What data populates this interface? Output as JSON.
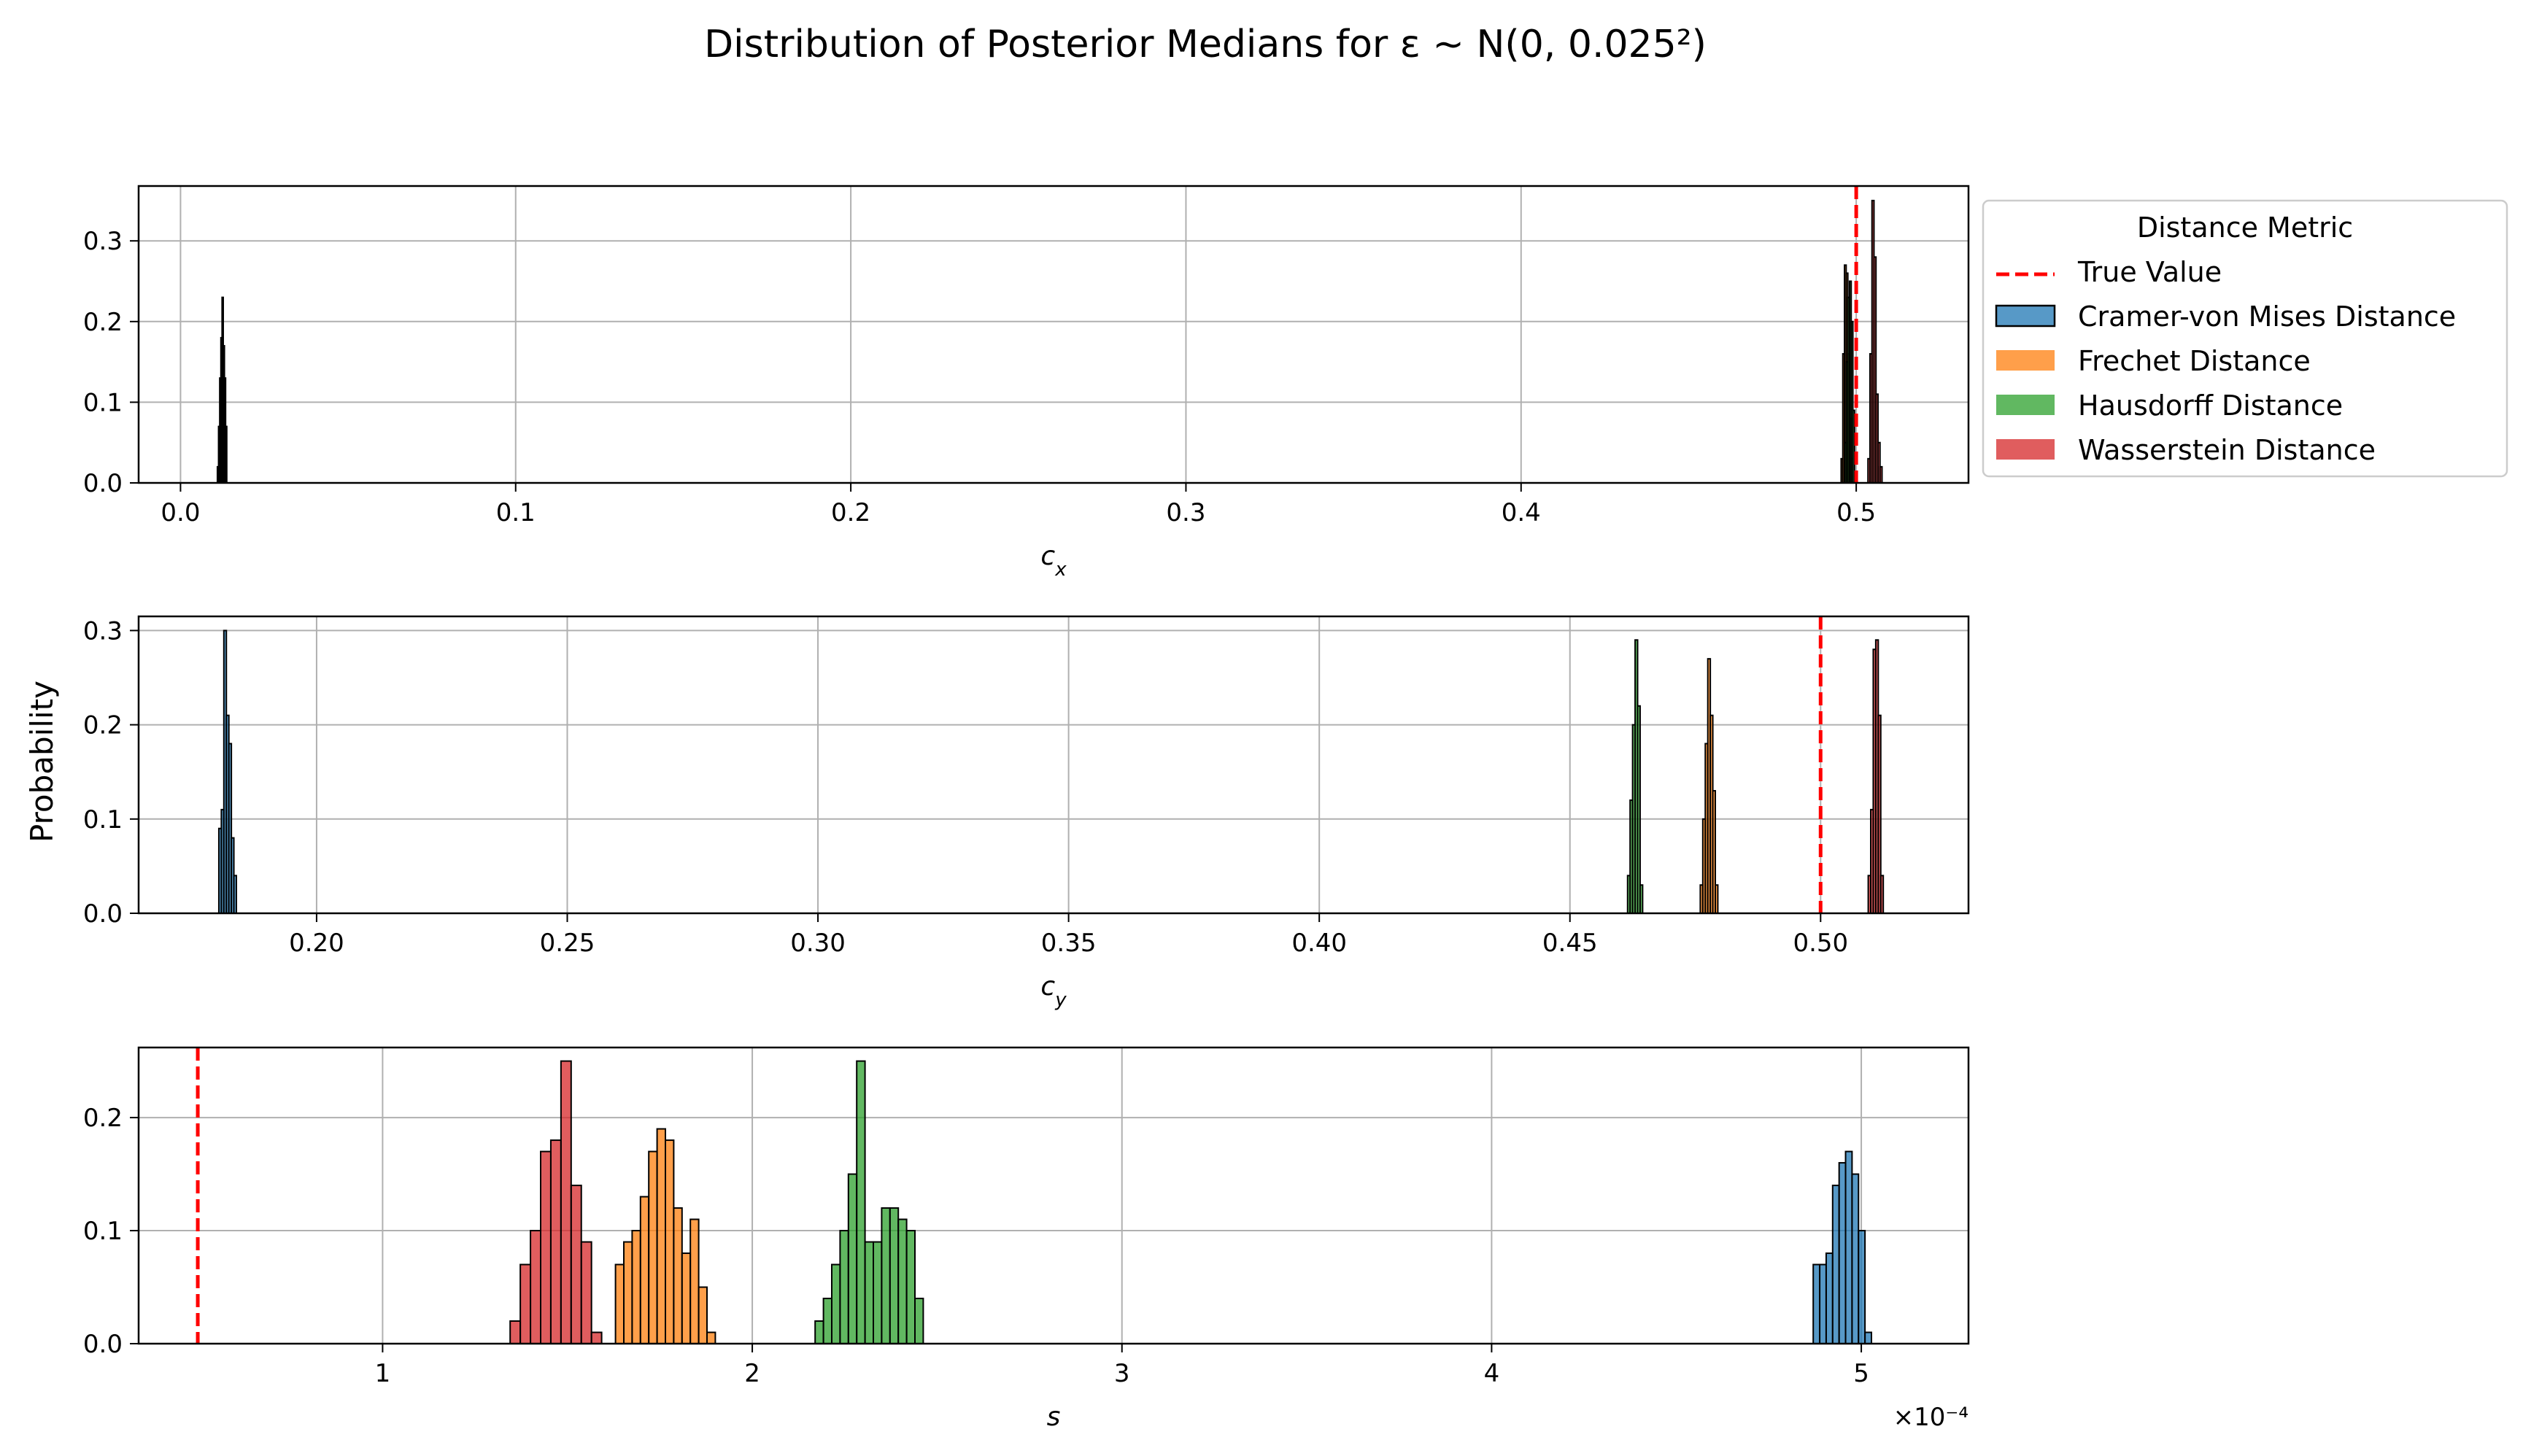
{
  "title": "Distribution of Posterior Medians for ε ~ N(0, 0.025²)",
  "ylabel": "Probability",
  "legend": {
    "title": "Distance Metric",
    "placement": "right of top panel",
    "true_value_label": "True Value",
    "items": [
      "Cramer-von Mises Distance",
      "Frechet Distance",
      "Hausdorff Distance",
      "Wasserstein Distance"
    ]
  },
  "colors": {
    "cramer": "#1f77b4",
    "frechet": "#ff7f0e",
    "hausdorff": "#2ca02c",
    "wasserstein": "#d62728",
    "true_value": "#ff0000",
    "grid": "#b0b0b0"
  },
  "chart_data": [
    {
      "type": "bar",
      "xlabel": "c_x",
      "xlim": [
        -0.0125,
        0.5335
      ],
      "ylim": [
        0,
        0.368
      ],
      "xticks": [
        0.0,
        0.1,
        0.2,
        0.3,
        0.4,
        0.5
      ],
      "xtick_labels": [
        "0.0",
        "0.1",
        "0.2",
        "0.3",
        "0.4",
        "0.5"
      ],
      "yticks": [
        0.0,
        0.1,
        0.2,
        0.3
      ],
      "ytick_labels": [
        "0.0",
        "0.1",
        "0.2",
        "0.3"
      ],
      "true_value": 0.5,
      "grid": true,
      "series": [
        {
          "name": "Cramer-von Mises Distance",
          "key": "cramer",
          "bin_start": 0.011,
          "bin_width": 0.00035,
          "values": [
            0.02,
            0.07,
            0.13,
            0.18,
            0.23,
            0.17,
            0.13,
            0.07
          ]
        },
        {
          "name": "Frechet Distance",
          "key": "frechet",
          "bin_start": 0.4955,
          "bin_width": 0.0005,
          "values": [
            0.03,
            0.16,
            0.27,
            0.26,
            0.16,
            0.08,
            0.03
          ]
        },
        {
          "name": "Hausdorff Distance",
          "key": "hausdorff",
          "bin_start": 0.4965,
          "bin_width": 0.0005,
          "values": [
            0.05,
            0.15,
            0.23,
            0.25,
            0.2,
            0.09
          ]
        },
        {
          "name": "Wasserstein Distance",
          "key": "wasserstein",
          "bin_start": 0.5035,
          "bin_width": 0.0006,
          "values": [
            0.03,
            0.16,
            0.35,
            0.28,
            0.11,
            0.05,
            0.02
          ]
        }
      ]
    },
    {
      "type": "bar",
      "xlabel": "c_y",
      "xlim": [
        0.1645,
        0.5295
      ],
      "ylim": [
        0,
        0.315
      ],
      "xticks": [
        0.2,
        0.25,
        0.3,
        0.35,
        0.4,
        0.45,
        0.5
      ],
      "xtick_labels": [
        "0.20",
        "0.25",
        "0.30",
        "0.35",
        "0.40",
        "0.45",
        "0.50"
      ],
      "yticks": [
        0.0,
        0.1,
        0.2,
        0.3
      ],
      "ytick_labels": [
        "0.0",
        "0.1",
        "0.2",
        "0.3"
      ],
      "true_value": 0.5,
      "grid": true,
      "series": [
        {
          "name": "Cramer-von Mises Distance",
          "key": "cramer",
          "bin_start": 0.1805,
          "bin_width": 0.0005,
          "values": [
            0.09,
            0.11,
            0.3,
            0.21,
            0.18,
            0.08,
            0.04
          ]
        },
        {
          "name": "Frechet Distance",
          "key": "frechet",
          "bin_start": 0.476,
          "bin_width": 0.0005,
          "values": [
            0.03,
            0.1,
            0.18,
            0.27,
            0.21,
            0.13,
            0.03
          ]
        },
        {
          "name": "Hausdorff Distance",
          "key": "hausdorff",
          "bin_start": 0.4615,
          "bin_width": 0.0005,
          "values": [
            0.04,
            0.12,
            0.2,
            0.29,
            0.22,
            0.03
          ]
        },
        {
          "name": "Wasserstein Distance",
          "key": "wasserstein",
          "bin_start": 0.5095,
          "bin_width": 0.0005,
          "values": [
            0.04,
            0.11,
            0.28,
            0.29,
            0.21,
            0.04
          ]
        }
      ]
    },
    {
      "type": "bar",
      "xlabel": "s",
      "xlim": [
        3.4e-05,
        0.000529
      ],
      "ylim": [
        0,
        0.262
      ],
      "xticks": [
        0.0001,
        0.0002,
        0.0003,
        0.0004,
        0.0005
      ],
      "xtick_labels": [
        "1",
        "2",
        "3",
        "4",
        "5"
      ],
      "yticks": [
        0.0,
        0.1,
        0.2
      ],
      "ytick_labels": [
        "0.0",
        "0.1",
        "0.2"
      ],
      "offset_text": "×10⁻⁴",
      "true_value": 5e-05,
      "grid": true,
      "series": [
        {
          "name": "Cramer-von Mises Distance",
          "key": "cramer",
          "bin_start": 0.000487,
          "bin_width": 1.75e-06,
          "values": [
            0.07,
            0.07,
            0.08,
            0.14,
            0.16,
            0.17,
            0.15,
            0.1,
            0.01
          ]
        },
        {
          "name": "Frechet Distance",
          "key": "frechet",
          "bin_start": 0.000163,
          "bin_width": 2.25e-06,
          "values": [
            0.07,
            0.09,
            0.1,
            0.13,
            0.17,
            0.19,
            0.18,
            0.12,
            0.08,
            0.11,
            0.05,
            0.01
          ]
        },
        {
          "name": "Hausdorff Distance",
          "key": "hausdorff",
          "bin_start": 0.000217,
          "bin_width": 2.25e-06,
          "values": [
            0.02,
            0.04,
            0.07,
            0.1,
            0.15,
            0.25,
            0.09,
            0.09,
            0.12,
            0.12,
            0.11,
            0.1,
            0.04
          ]
        },
        {
          "name": "Wasserstein Distance",
          "key": "wasserstein",
          "bin_start": 0.0001345,
          "bin_width": 2.75e-06,
          "values": [
            0.02,
            0.07,
            0.1,
            0.17,
            0.18,
            0.25,
            0.14,
            0.09,
            0.01
          ]
        }
      ]
    }
  ]
}
